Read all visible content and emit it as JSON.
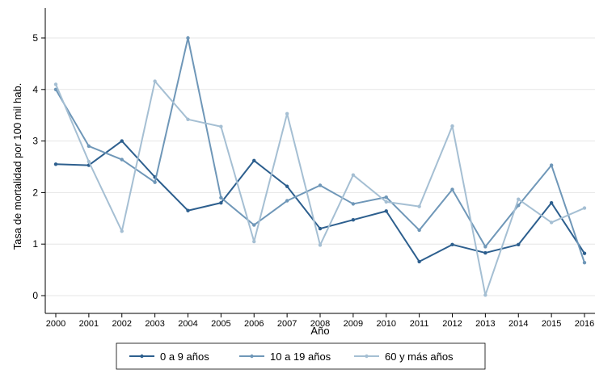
{
  "chart_data": {
    "type": "line",
    "title": "",
    "xlabel": "Año",
    "ylabel": "Tasa de mortalidad por 100 mil hab.",
    "x": [
      2000,
      2001,
      2002,
      2003,
      2004,
      2005,
      2006,
      2007,
      2008,
      2009,
      2010,
      2011,
      2012,
      2013,
      2014,
      2015,
      2016
    ],
    "xlim": [
      2000,
      2016
    ],
    "ylim": [
      0,
      5
    ],
    "yticks": [
      0,
      1,
      2,
      3,
      4,
      5
    ],
    "grid": "horizontal",
    "legend_position": "bottom",
    "series": [
      {
        "name": "0 a 9 años",
        "color": "#2d5f8e",
        "values": [
          2.55,
          2.53,
          3.0,
          2.3,
          1.65,
          1.8,
          2.62,
          2.12,
          1.3,
          1.47,
          1.64,
          0.66,
          0.99,
          0.83,
          0.99,
          1.8,
          0.82
        ]
      },
      {
        "name": "10 a 19 años",
        "color": "#6f97b8",
        "values": [
          4.0,
          2.9,
          2.64,
          2.2,
          5.0,
          1.9,
          1.37,
          1.84,
          2.14,
          1.78,
          1.91,
          1.27,
          2.06,
          0.95,
          1.75,
          2.53,
          0.64
        ]
      },
      {
        "name": "60 y más años",
        "color": "#a5bfd3",
        "values": [
          4.1,
          2.6,
          1.25,
          4.16,
          3.42,
          3.28,
          1.05,
          3.53,
          0.98,
          2.34,
          1.82,
          1.73,
          3.29,
          0.01,
          1.87,
          1.42,
          1.7
        ]
      }
    ]
  }
}
